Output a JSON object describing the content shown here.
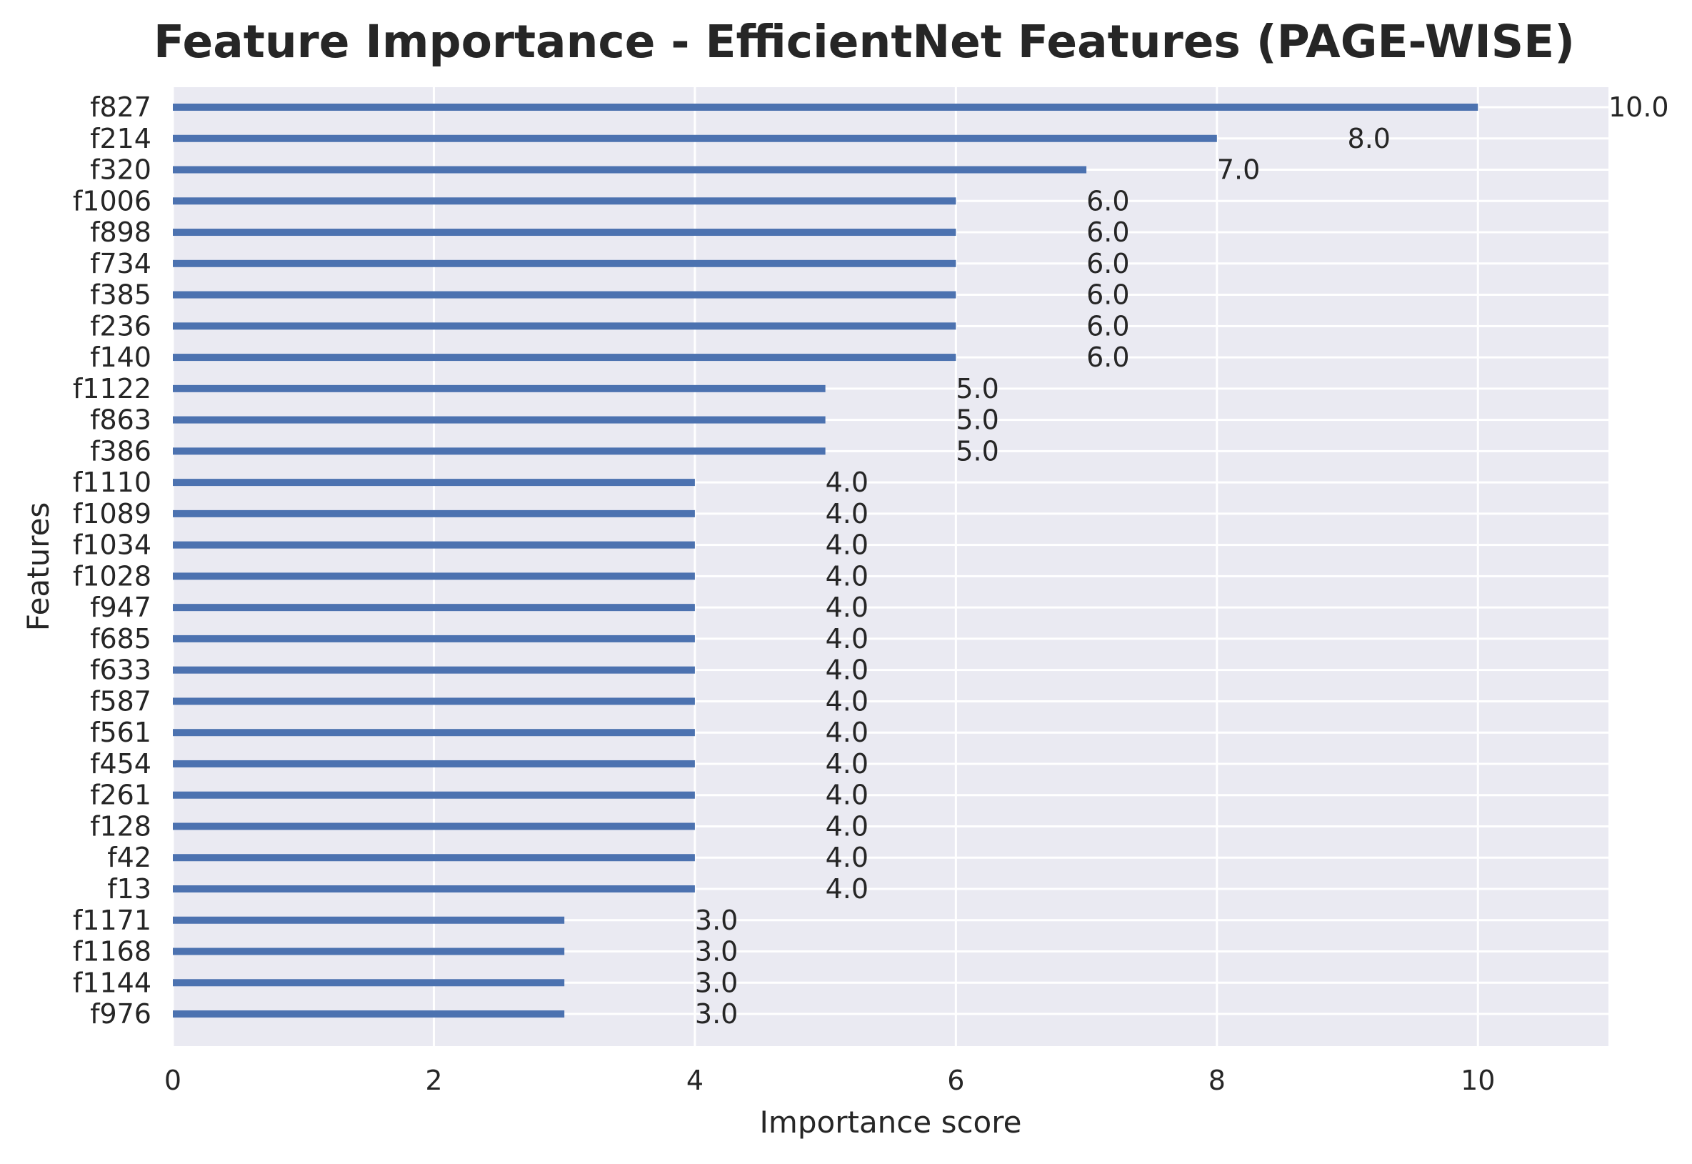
{
  "chart_data": {
    "type": "bar",
    "orientation": "horizontal",
    "title": "Feature Importance - EfficientNet Features (PAGE-WISE)",
    "xlabel": "Importance score",
    "ylabel": "Features",
    "xlim": [
      0,
      11
    ],
    "xticks": [
      0,
      2,
      4,
      6,
      8,
      10
    ],
    "grid": true,
    "bar_color": "#4c72b0",
    "background_color": "#eaeaf2",
    "grid_color": "#ffffff",
    "categories": [
      "f827",
      "f214",
      "f320",
      "f1006",
      "f898",
      "f734",
      "f385",
      "f236",
      "f140",
      "f1122",
      "f863",
      "f386",
      "f1110",
      "f1089",
      "f1034",
      "f1028",
      "f947",
      "f685",
      "f633",
      "f587",
      "f561",
      "f454",
      "f261",
      "f128",
      "f42",
      "f13",
      "f1171",
      "f1168",
      "f1144",
      "f976"
    ],
    "values": [
      10,
      8,
      7,
      6,
      6,
      6,
      6,
      6,
      6,
      5,
      5,
      5,
      4,
      4,
      4,
      4,
      4,
      4,
      4,
      4,
      4,
      4,
      4,
      4,
      4,
      4,
      3,
      3,
      3,
      3
    ],
    "data_labels": [
      "10.0",
      "8.0",
      "7.0",
      "6.0",
      "6.0",
      "6.0",
      "6.0",
      "6.0",
      "6.0",
      "5.0",
      "5.0",
      "5.0",
      "4.0",
      "4.0",
      "4.0",
      "4.0",
      "4.0",
      "4.0",
      "4.0",
      "4.0",
      "4.0",
      "4.0",
      "4.0",
      "4.0",
      "4.0",
      "4.0",
      "3.0",
      "3.0",
      "3.0",
      "3.0"
    ]
  }
}
